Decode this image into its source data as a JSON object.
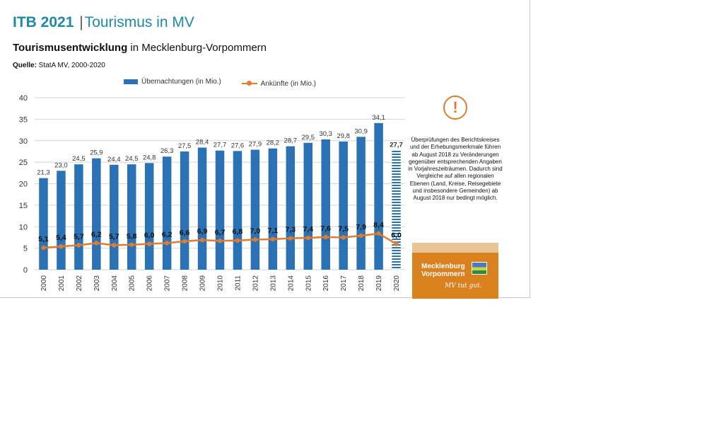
{
  "header": {
    "event": "ITB 2021",
    "separator": "|",
    "topic": "Tourismus in MV"
  },
  "subtitle": {
    "bold": "Tourismusentwicklung",
    "rest": " in Mecklenburg-Vorpommern"
  },
  "source": {
    "label": "Quelle:",
    "text": " StatA MV, 2000-2020"
  },
  "legend": {
    "bars": "Übernachtungen (in Mio.)",
    "line": "Ankünfte (in Mio.)"
  },
  "notice": {
    "icon": "!",
    "text": "Überprüfungen des Berichtskreises und der Erhebungsmerkmale führen ab August 2018 zu Veränderungen gegenüber entsprechenden Angaben in Vorjahreszeiträumen. Dadurch sind Vergleiche auf allen regionalen Ebenen (Land, Kreise, Reisegebiete und insbesondere Gemeinden) ab August 2018 nur bedingt möglich."
  },
  "logo": {
    "line1": "Mecklenburg",
    "line2": "Vorpommern",
    "slogan": "MV tut gut."
  },
  "colors": {
    "bars": "#2b72b5",
    "line": "#e07b2f",
    "title": "#1f8aa5",
    "logo_bg": "#d9811e"
  },
  "chart_data": {
    "type": "bar",
    "categories": [
      "2000",
      "2001",
      "2002",
      "2003",
      "2004",
      "2005",
      "2006",
      "2007",
      "2008",
      "2009",
      "2010",
      "2011",
      "2012",
      "2013",
      "2014",
      "2015",
      "2016",
      "2017",
      "2018",
      "2019",
      "2020"
    ],
    "series": [
      {
        "name": "Übernachtungen (in Mio.)",
        "type": "bar",
        "values": [
          21.3,
          23.0,
          24.5,
          25.9,
          24.4,
          24.5,
          24.8,
          26.3,
          27.5,
          28.4,
          27.7,
          27.6,
          27.9,
          28.2,
          28.7,
          29.5,
          30.3,
          29.8,
          30.9,
          34.1,
          27.7
        ],
        "labels": [
          "21,3",
          "23,0",
          "24,5",
          "25,9",
          "24,4",
          "24,5",
          "24,8",
          "26,3",
          "27,5",
          "28,4",
          "27,7",
          "27,6",
          "27,9",
          "28,2",
          "28,7",
          "29,5",
          "30,3",
          "29,8",
          "30,9",
          "34,1",
          "27,7"
        ]
      },
      {
        "name": "Ankünfte (in Mio.)",
        "type": "line",
        "values": [
          5.1,
          5.4,
          5.7,
          6.2,
          5.7,
          5.8,
          6.0,
          6.2,
          6.6,
          6.9,
          6.7,
          6.8,
          7.0,
          7.1,
          7.3,
          7.4,
          7.6,
          7.5,
          7.9,
          8.4,
          6.0
        ],
        "labels": [
          "5,1",
          "5,4",
          "5,7",
          "6,2",
          "5,7",
          "5,8",
          "6,0",
          "6,2",
          "6,6",
          "6,9",
          "6,7",
          "6,8",
          "7,0",
          "7,1",
          "7,3",
          "7,4",
          "7,6",
          "7,5",
          "7,9",
          "8,4",
          "6,0"
        ]
      }
    ],
    "ylim": [
      0,
      40
    ],
    "yticks": [
      "0",
      "5",
      "10",
      "15",
      "20",
      "25",
      "30",
      "35",
      "40"
    ],
    "grid": true,
    "legend_position": "top",
    "highlight_last": true
  }
}
